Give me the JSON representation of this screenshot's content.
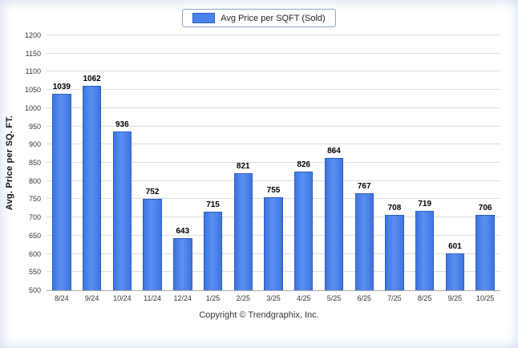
{
  "legend": {
    "label": "Avg Price per SQFT (Sold)"
  },
  "footer": {
    "copyright": "Copyright © Trendgraphix, Inc."
  },
  "chart_data": {
    "type": "bar",
    "title": "",
    "xlabel": "",
    "ylabel": "Avg. Price per SQ. FT.",
    "categories": [
      "8/24",
      "9/24",
      "10/24",
      "11/24",
      "12/24",
      "1/25",
      "2/25",
      "3/25",
      "4/25",
      "5/25",
      "6/25",
      "7/25",
      "8/25",
      "9/25",
      "10/25"
    ],
    "values": [
      1039,
      1062,
      936,
      752,
      643,
      715,
      821,
      755,
      826,
      864,
      767,
      708,
      719,
      601,
      706
    ],
    "ylim": [
      500,
      1200
    ],
    "yticks": [
      500,
      550,
      600,
      650,
      700,
      750,
      800,
      850,
      900,
      950,
      1000,
      1050,
      1100,
      1150,
      1200
    ],
    "grid": true,
    "legend_position": "top",
    "bar_color": "#4a82ec",
    "bar_border_color": "#2c5fc4",
    "series": [
      {
        "name": "Avg Price per SQFT (Sold)",
        "values": [
          1039,
          1062,
          936,
          752,
          643,
          715,
          821,
          755,
          826,
          864,
          767,
          708,
          719,
          601,
          706
        ]
      }
    ]
  }
}
